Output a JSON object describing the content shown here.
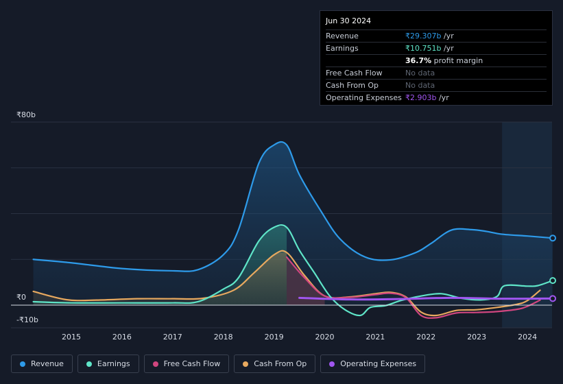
{
  "tooltip": {
    "date": "Jun 30 2024",
    "rows": [
      {
        "label": "Revenue",
        "value": "₹29.307b",
        "unit": " /yr",
        "color": "#2e9bea"
      },
      {
        "label": "Earnings",
        "value": "₹10.751b",
        "unit": " /yr",
        "color": "#5fe5c8"
      },
      {
        "label": "",
        "value": "36.7%",
        "unit": " profit margin",
        "color": "#ffffff"
      },
      {
        "label": "Free Cash Flow",
        "value": "No data",
        "unit": "",
        "color": "#5f6673"
      },
      {
        "label": "Cash From Op",
        "value": "No data",
        "unit": "",
        "color": "#5f6673"
      },
      {
        "label": "Operating Expenses",
        "value": "₹2.903b",
        "unit": " /yr",
        "color": "#a056f0"
      }
    ]
  },
  "legend": [
    {
      "label": "Revenue",
      "color": "#2e9bea"
    },
    {
      "label": "Earnings",
      "color": "#5fe5c8"
    },
    {
      "label": "Free Cash Flow",
      "color": "#d0467f"
    },
    {
      "label": "Cash From Op",
      "color": "#e8a95f"
    },
    {
      "label": "Operating Expenses",
      "color": "#a056f0"
    }
  ],
  "chart_data": {
    "type": "area",
    "ylim": [
      -10,
      80
    ],
    "y_tick_labels": [
      {
        "value": 80,
        "label": "₹80b"
      },
      {
        "value": 0,
        "label": "₹0"
      },
      {
        "value": -10,
        "label": "-₹10b"
      }
    ],
    "x_tick_labels": [
      "2015",
      "2016",
      "2017",
      "2018",
      "2019",
      "2020",
      "2021",
      "2022",
      "2023",
      "2024"
    ],
    "grid": true,
    "forecast_shading_from": 2023.5,
    "series": [
      {
        "name": "Revenue",
        "color": "#2e9bea",
        "points": [
          [
            2014.25,
            20
          ],
          [
            2015,
            18.5
          ],
          [
            2016,
            16
          ],
          [
            2017,
            15
          ],
          [
            2017.5,
            15.5
          ],
          [
            2018,
            22
          ],
          [
            2018.3,
            33
          ],
          [
            2018.7,
            62
          ],
          [
            2019.0,
            70
          ],
          [
            2019.25,
            70
          ],
          [
            2019.5,
            57
          ],
          [
            2019.9,
            42
          ],
          [
            2020.3,
            29
          ],
          [
            2020.8,
            21
          ],
          [
            2021.3,
            19.8
          ],
          [
            2021.8,
            23
          ],
          [
            2022.1,
            27
          ],
          [
            2022.5,
            32.8
          ],
          [
            2022.9,
            33
          ],
          [
            2023.2,
            32.2
          ],
          [
            2023.5,
            31
          ],
          [
            2024.0,
            30.2
          ],
          [
            2024.5,
            29.3
          ]
        ]
      },
      {
        "name": "Earnings",
        "color": "#5fe5c8",
        "points": [
          [
            2014.25,
            1.5
          ],
          [
            2015,
            1
          ],
          [
            2016,
            1
          ],
          [
            2017,
            1
          ],
          [
            2017.5,
            1.5
          ],
          [
            2018,
            7
          ],
          [
            2018.3,
            12
          ],
          [
            2018.7,
            28
          ],
          [
            2019.0,
            34
          ],
          [
            2019.25,
            34
          ],
          [
            2019.5,
            24
          ],
          [
            2019.8,
            14
          ],
          [
            2020.1,
            4
          ],
          [
            2020.4,
            -2
          ],
          [
            2020.7,
            -4.5
          ],
          [
            2020.9,
            -1
          ],
          [
            2021.2,
            -0.2
          ],
          [
            2021.5,
            2
          ],
          [
            2021.9,
            4
          ],
          [
            2022.3,
            5
          ],
          [
            2022.7,
            3
          ],
          [
            2023.1,
            2.3
          ],
          [
            2023.4,
            3.8
          ],
          [
            2023.55,
            8.5
          ],
          [
            2024.0,
            8.3
          ],
          [
            2024.2,
            8.5
          ],
          [
            2024.5,
            10.75
          ]
        ]
      },
      {
        "name": "Free Cash Flow",
        "color": "#d0467f",
        "points": [
          [
            2019.25,
            21
          ],
          [
            2019.6,
            12
          ],
          [
            2020.0,
            4
          ],
          [
            2020.5,
            3.4
          ],
          [
            2021.0,
            4.6
          ],
          [
            2021.3,
            5.2
          ],
          [
            2021.6,
            3.3
          ],
          [
            2021.9,
            -4.5
          ],
          [
            2022.2,
            -5.5
          ],
          [
            2022.6,
            -3.4
          ],
          [
            2023.0,
            -3.2
          ],
          [
            2023.4,
            -2.8
          ],
          [
            2023.8,
            -1.8
          ],
          [
            2024.0,
            -0.5
          ],
          [
            2024.25,
            2.2
          ]
        ]
      },
      {
        "name": "Cash From Op",
        "color": "#e8a95f",
        "points": [
          [
            2014.25,
            6
          ],
          [
            2014.9,
            2.4
          ],
          [
            2015.5,
            2.2
          ],
          [
            2016.3,
            2.8
          ],
          [
            2017.0,
            2.8
          ],
          [
            2017.6,
            3
          ],
          [
            2018.2,
            6.5
          ],
          [
            2018.6,
            14
          ],
          [
            2019.0,
            22
          ],
          [
            2019.25,
            23
          ],
          [
            2019.6,
            13
          ],
          [
            2020.0,
            4
          ],
          [
            2020.5,
            3.6
          ],
          [
            2021.0,
            5
          ],
          [
            2021.3,
            5.6
          ],
          [
            2021.6,
            3.6
          ],
          [
            2021.9,
            -3
          ],
          [
            2022.2,
            -4.5
          ],
          [
            2022.6,
            -2.3
          ],
          [
            2023.0,
            -2
          ],
          [
            2023.4,
            -1
          ],
          [
            2023.8,
            0.4
          ],
          [
            2024.0,
            2
          ],
          [
            2024.25,
            6.5
          ]
        ]
      },
      {
        "name": "Operating Expenses",
        "color": "#a056f0",
        "points": [
          [
            2019.5,
            3.2
          ],
          [
            2020.5,
            2.5
          ],
          [
            2021.5,
            2.7
          ],
          [
            2022.5,
            3.2
          ],
          [
            2023.5,
            2.8
          ],
          [
            2024.5,
            2.9
          ]
        ]
      }
    ]
  }
}
